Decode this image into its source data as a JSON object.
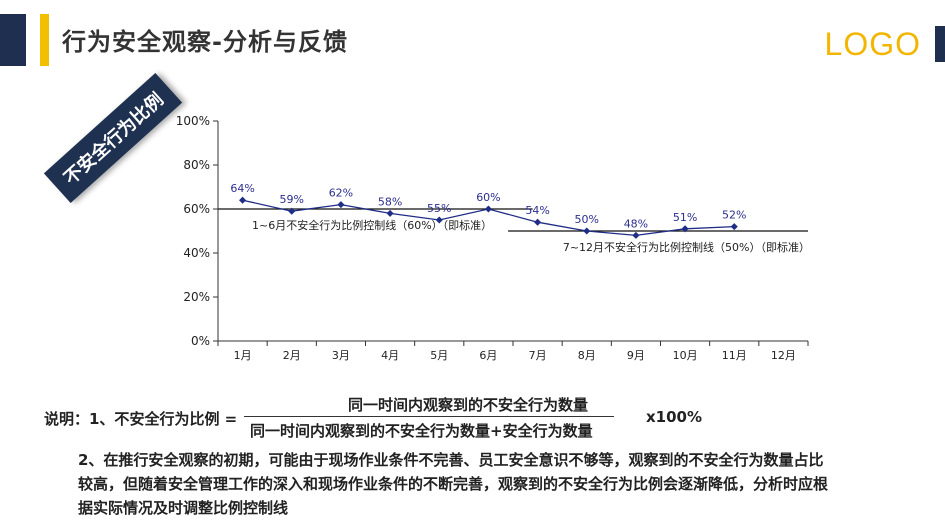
{
  "header": {
    "title": "行为安全观察-分析与反馈",
    "logo": "LOGO"
  },
  "side_label": "不安全行为比例",
  "chart_data": {
    "type": "line",
    "categories": [
      "1月",
      "2月",
      "3月",
      "4月",
      "5月",
      "6月",
      "7月",
      "8月",
      "9月",
      "10月",
      "11月",
      "12月"
    ],
    "values": [
      64,
      59,
      62,
      58,
      55,
      60,
      54,
      50,
      48,
      51,
      52,
      null
    ],
    "data_labels": [
      "64%",
      "59%",
      "62%",
      "58%",
      "55%",
      "60%",
      "54%",
      "50%",
      "48%",
      "51%",
      "52%",
      ""
    ],
    "ylim": [
      0,
      100
    ],
    "yticks": [
      0,
      20,
      40,
      60,
      80,
      100
    ],
    "ytick_labels": [
      "0%",
      "20%",
      "40%",
      "60%",
      "80%",
      "100%"
    ],
    "series_color": "#1f2d86",
    "control_lines": [
      {
        "label": "1~6月不安全行为比例控制线（60%）（即标准）",
        "value": 60,
        "from_category": 0,
        "to_category": 5
      },
      {
        "label": "7~12月不安全行为比例控制线（50%）（即标准）",
        "value": 50,
        "from_category": 5,
        "to_category": 11
      }
    ]
  },
  "explanation": {
    "prefix": "说明：1、不安全行为比例 =",
    "numerator": "同一时间内观察到的不安全行为数量",
    "denominator": "同一时间内观察到的不安全行为数量+安全行为数量",
    "multiplier": "x100%",
    "note2_lines": [
      "2、在推行安全观察的初期，可能由于现场作业条件不完善、员工安全意识不够等，观察到的不安全行为数量占比",
      "较高，但随着安全管理工作的深入和现场作业条件的不断完善，观察到的不安全行为比例会逐渐降低，分析时应根",
      "据实际情况及时调整比例控制线"
    ]
  }
}
